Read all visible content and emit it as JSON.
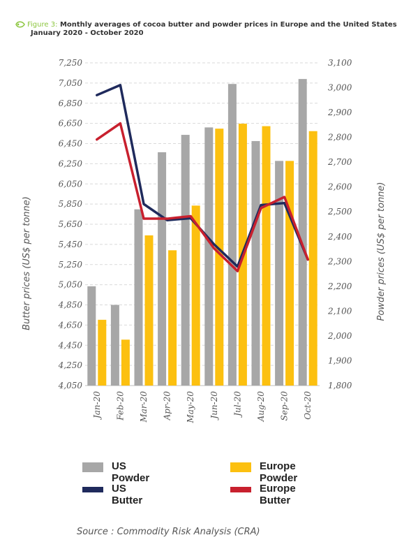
{
  "header": {
    "figure_label": "Figure 3:",
    "title_line1": "Monthly averages of cocoa butter and powder prices in Europe and the United States",
    "title_line2": "January 2020 - October 2020"
  },
  "source": "Source : Commodity Risk Analysis (CRA)",
  "colors": {
    "us_powder": "#a7a7a7",
    "europe_powder": "#fcc010",
    "us_butter": "#1f2a5c",
    "europe_butter": "#c8202e",
    "grid": "#d9d9d9",
    "accent": "#8cc63f"
  },
  "chart_data": {
    "type": "bar",
    "categories": [
      "Jan-20",
      "Feb-20",
      "Mar-20",
      "Apr-20",
      "May-20",
      "Jun-20",
      "Jul-20",
      "Aug-20",
      "Sep-20",
      "Oct-20"
    ],
    "xlabel": "",
    "ylabel": "Butter prices (US$ per tonne)",
    "y2label": "Powder prices (US$ per tonne)",
    "ylim": [
      4050,
      7250
    ],
    "y2lim": [
      1800,
      3100
    ],
    "yticks": [
      "4,050",
      "4,250",
      "4,450",
      "4,650",
      "4,850",
      "5,050",
      "5,250",
      "5,450",
      "5,650",
      "5,850",
      "6,050",
      "6,250",
      "6,450",
      "6,650",
      "6,850",
      "7,050",
      "7,250"
    ],
    "yticks_values": [
      4050,
      4250,
      4450,
      4650,
      4850,
      5050,
      5250,
      5450,
      5650,
      5850,
      6050,
      6250,
      6450,
      6650,
      6850,
      7050,
      7250
    ],
    "y2ticks": [
      "1,800",
      "1,900",
      "2,000",
      "2,100",
      "2,200",
      "2,300",
      "2,400",
      "2,500",
      "2,600",
      "2,700",
      "2,800",
      "2,900",
      "3,000",
      "3,100"
    ],
    "y2ticks_values": [
      1800,
      1900,
      2000,
      2100,
      2200,
      2300,
      2400,
      2500,
      2600,
      2700,
      2800,
      2900,
      3000,
      3100
    ],
    "grid": true,
    "legend_position": "bottom",
    "bar_series": [
      {
        "name": "US Powder",
        "color_key": "us_powder",
        "axis": "right",
        "values": [
          2200,
          2125,
          2510,
          2740,
          2810,
          2840,
          3015,
          2785,
          2705,
          3035
        ]
      },
      {
        "name": "Europe Powder",
        "color_key": "europe_powder",
        "axis": "right",
        "values": [
          2065,
          1985,
          2405,
          2345,
          2525,
          2835,
          2855,
          2845,
          2705,
          2825
        ]
      }
    ],
    "line_series": [
      {
        "name": "US Butter",
        "color_key": "us_butter",
        "axis": "left",
        "values": [
          6930,
          7030,
          5850,
          5690,
          5710,
          5450,
          5230,
          5840,
          5860,
          5300
        ]
      },
      {
        "name": "Europe Butter",
        "color_key": "europe_butter",
        "axis": "left",
        "values": [
          6490,
          6650,
          5705,
          5705,
          5730,
          5410,
          5185,
          5810,
          5920,
          5300
        ]
      }
    ]
  },
  "legend": [
    {
      "name": "US Powder",
      "color_key": "us_powder",
      "kind": "box"
    },
    {
      "name": "Europe Powder",
      "color_key": "europe_powder",
      "kind": "box"
    },
    {
      "name": "US Butter",
      "color_key": "us_butter",
      "kind": "line"
    },
    {
      "name": "Europe Butter",
      "color_key": "europe_butter",
      "kind": "line"
    }
  ]
}
